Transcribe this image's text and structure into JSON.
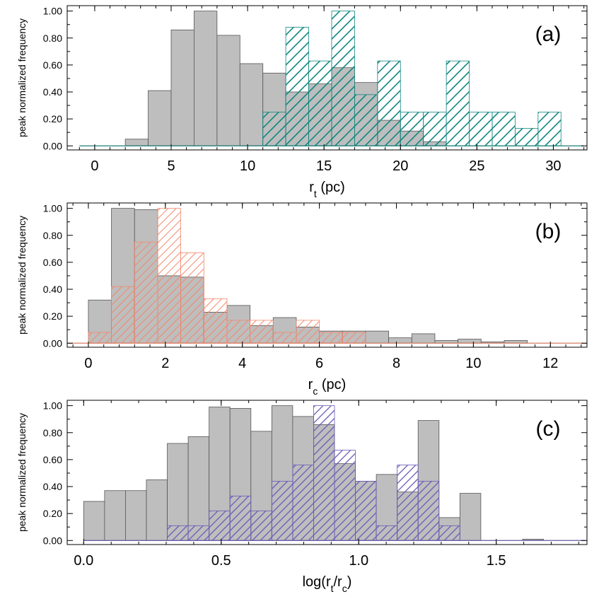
{
  "figure": {
    "y_axis_label": "peak normalized frequency"
  },
  "chart_data": [
    {
      "panel": "(a)",
      "type": "histogram",
      "xlabel_base": "r",
      "xlabel_sub": "t",
      "xlabel_rest": " (pc)",
      "ylabel": "peak normalized frequency",
      "xlim": [
        -1.8,
        32.2
      ],
      "ylim": [
        -0.03,
        1.04
      ],
      "xticks": [
        0,
        5,
        10,
        15,
        20,
        25,
        30
      ],
      "xticklabels": [
        "0",
        "5",
        "10",
        "15",
        "20",
        "25",
        "30"
      ],
      "yticks": [
        0,
        0.2,
        0.4,
        0.6,
        0.8,
        1.0
      ],
      "yticklabels": [
        "0.00",
        "0.20",
        "0.40",
        "0.60",
        "0.80",
        "1.00"
      ],
      "bin_edges": [
        -1.0,
        0.5,
        2.0,
        3.5,
        5.0,
        6.5,
        8.0,
        9.5,
        11.0,
        12.5,
        14.0,
        15.5,
        17.0,
        18.5,
        20.0,
        21.5,
        23.0,
        24.5,
        26.0,
        27.5,
        29.0,
        30.5,
        32.0
      ],
      "series": [
        {
          "style": "solid",
          "color": "#bebebe",
          "edge": "#555555",
          "values": [
            0,
            0,
            0.05,
            0.41,
            0.86,
            1.0,
            0.82,
            0.61,
            0.54,
            0.4,
            0.46,
            0.58,
            0.47,
            0.19,
            0.11,
            0.03,
            0,
            0,
            0,
            0,
            0,
            0
          ]
        },
        {
          "style": "hatched",
          "color": "#0e8780",
          "values": [
            0,
            0,
            0,
            0,
            0,
            0,
            0,
            0,
            0.25,
            0.88,
            0.63,
            1.0,
            0.38,
            0.63,
            0.25,
            0.25,
            0.63,
            0.25,
            0.25,
            0.13,
            0.25,
            0
          ]
        }
      ]
    },
    {
      "panel": "(b)",
      "type": "histogram",
      "xlabel_base": "r",
      "xlabel_sub": "c",
      "xlabel_rest": " (pc)",
      "ylabel": "peak normalized frequency",
      "xlim": [
        -0.55,
        12.95
      ],
      "ylim": [
        -0.03,
        1.04
      ],
      "xticks": [
        0,
        2,
        4,
        6,
        8,
        10,
        12
      ],
      "xticklabels": [
        "0",
        "2",
        "4",
        "6",
        "8",
        "10",
        "12"
      ],
      "yticks": [
        0,
        0.2,
        0.4,
        0.6,
        0.8,
        1.0
      ],
      "yticklabels": [
        "0.00",
        "0.20",
        "0.40",
        "0.60",
        "0.80",
        "1.00"
      ],
      "bin_edges": [
        -0.6,
        0.0,
        0.6,
        1.2,
        1.8,
        2.4,
        3.0,
        3.6,
        4.2,
        4.8,
        5.4,
        6.0,
        6.6,
        7.2,
        7.8,
        8.4,
        9.0,
        9.6,
        10.2,
        10.8,
        11.4,
        12.0,
        12.6,
        13.0
      ],
      "series": [
        {
          "style": "solid",
          "color": "#bebebe",
          "edge": "#555555",
          "values": [
            0,
            0.32,
            1.0,
            0.99,
            0.5,
            0.49,
            0.23,
            0.28,
            0.13,
            0.19,
            0.12,
            0.09,
            0.09,
            0.09,
            0.04,
            0.07,
            0.02,
            0.03,
            0.01,
            0.02,
            0,
            0,
            0
          ]
        },
        {
          "style": "hatched",
          "color": "#f5876a",
          "values": [
            0,
            0.08,
            0.42,
            0.75,
            1.0,
            0.67,
            0.33,
            0.17,
            0.17,
            0.08,
            0.17,
            0.08,
            0.08,
            0,
            0,
            0,
            0,
            0,
            0,
            0,
            0,
            0,
            0
          ]
        }
      ]
    },
    {
      "panel": "(c)",
      "type": "histogram",
      "xlabel": "log(rₜ/rᶜ)",
      "xlabel_base": "log(r",
      "xlabel_sub": "t",
      "xlabel_mid": "/r",
      "xlabel_sub2": "c",
      "xlabel_rest": ")",
      "ylabel": "peak normalized frequency",
      "xlim": [
        -0.06,
        1.83
      ],
      "ylim": [
        -0.03,
        1.04
      ],
      "xticks": [
        0.0,
        0.5,
        1.0,
        1.5
      ],
      "xticklabels": [
        "0.0",
        "0.5",
        "1.0",
        "1.5"
      ],
      "yticks": [
        0,
        0.2,
        0.4,
        0.6,
        0.8,
        1.0
      ],
      "yticklabels": [
        "0.00",
        "0.20",
        "0.40",
        "0.60",
        "0.80",
        "1.00"
      ],
      "bin_edges": [
        0.0,
        0.076,
        0.152,
        0.228,
        0.304,
        0.38,
        0.456,
        0.532,
        0.608,
        0.684,
        0.76,
        0.836,
        0.912,
        0.988,
        1.064,
        1.14,
        1.216,
        1.292,
        1.368,
        1.444,
        1.52,
        1.596,
        1.672,
        1.748,
        1.824
      ],
      "series": [
        {
          "style": "solid",
          "color": "#bebebe",
          "edge": "#555555",
          "values": [
            0.29,
            0.37,
            0.37,
            0.45,
            0.72,
            0.77,
            0.99,
            0.98,
            0.81,
            1.0,
            0.92,
            0.86,
            0.57,
            0.44,
            0.49,
            0.36,
            0.89,
            0.17,
            0.35,
            0,
            0,
            0.01,
            0,
            0
          ]
        },
        {
          "style": "hatched",
          "color": "#6a5ab6",
          "values": [
            0,
            0,
            0,
            0,
            0.11,
            0.11,
            0.22,
            0.33,
            0.22,
            0.44,
            0.56,
            1.0,
            0.67,
            0.44,
            0.11,
            0.56,
            0.44,
            0.11,
            0,
            0,
            0,
            0,
            0,
            0
          ]
        }
      ]
    }
  ]
}
